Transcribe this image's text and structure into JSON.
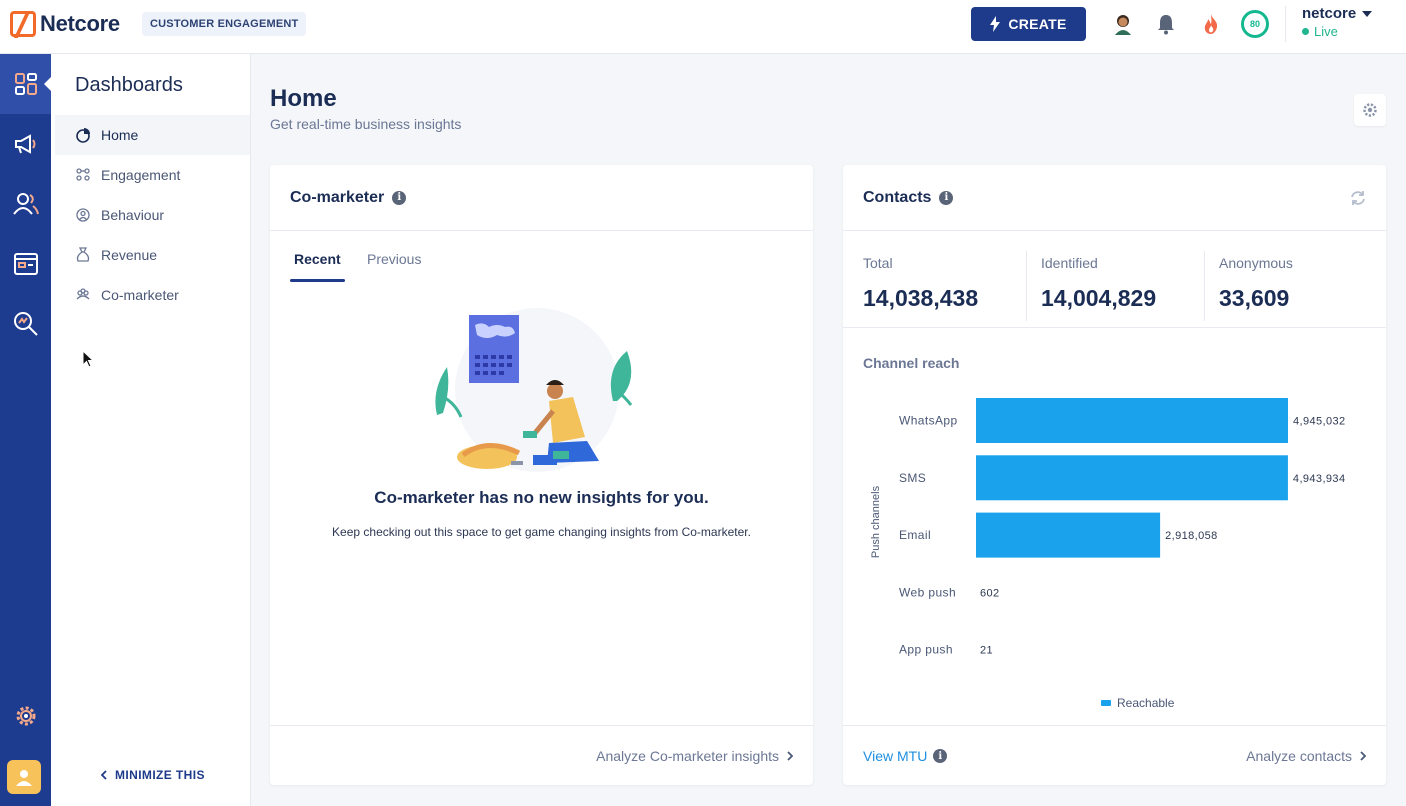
{
  "header": {
    "brand": "Netcore",
    "tagline": "CUSTOMER ENGAGEMENT",
    "create_label": "CREATE",
    "score": "80",
    "account_name": "netcore",
    "account_status": "Live"
  },
  "sidebar": {
    "title": "Dashboards",
    "items": [
      {
        "label": "Home",
        "icon": "pie-chart-icon"
      },
      {
        "label": "Engagement",
        "icon": "users-icon"
      },
      {
        "label": "Behaviour",
        "icon": "behaviour-icon"
      },
      {
        "label": "Revenue",
        "icon": "money-bag-icon"
      },
      {
        "label": "Co-marketer",
        "icon": "group-icon"
      }
    ],
    "minimize_label": "MINIMIZE THIS"
  },
  "page": {
    "title": "Home",
    "subtitle": "Get real-time business insights"
  },
  "comarketer": {
    "title": "Co-marketer",
    "tabs": [
      "Recent",
      "Previous"
    ],
    "empty_title": "Co-marketer has no new insights for you.",
    "empty_subtitle": "Keep checking out this space to get game changing insights from Co-marketer.",
    "footer_link": "Analyze Co-marketer insights"
  },
  "contacts": {
    "title": "Contacts",
    "stats": [
      {
        "label": "Total",
        "value": "14,038,438"
      },
      {
        "label": "Identified",
        "value": "14,004,829"
      },
      {
        "label": "Anonymous",
        "value": "33,609"
      }
    ],
    "channel_reach_title": "Channel reach",
    "view_mtu": "View MTU",
    "footer_link": "Analyze contacts"
  },
  "chart_data": {
    "type": "bar",
    "orientation": "horizontal",
    "categories": [
      "WhatsApp",
      "SMS",
      "Email",
      "Web push",
      "App push"
    ],
    "series": [
      {
        "name": "Reachable",
        "values": [
          4945032,
          4943934,
          2918058,
          602,
          21
        ]
      }
    ],
    "value_labels": [
      "4,945,032",
      "4,943,934",
      "2,918,058",
      "602",
      "21"
    ],
    "ylabel": "Push channels",
    "legend": "bottom-center",
    "color": "#1aa3ec"
  }
}
